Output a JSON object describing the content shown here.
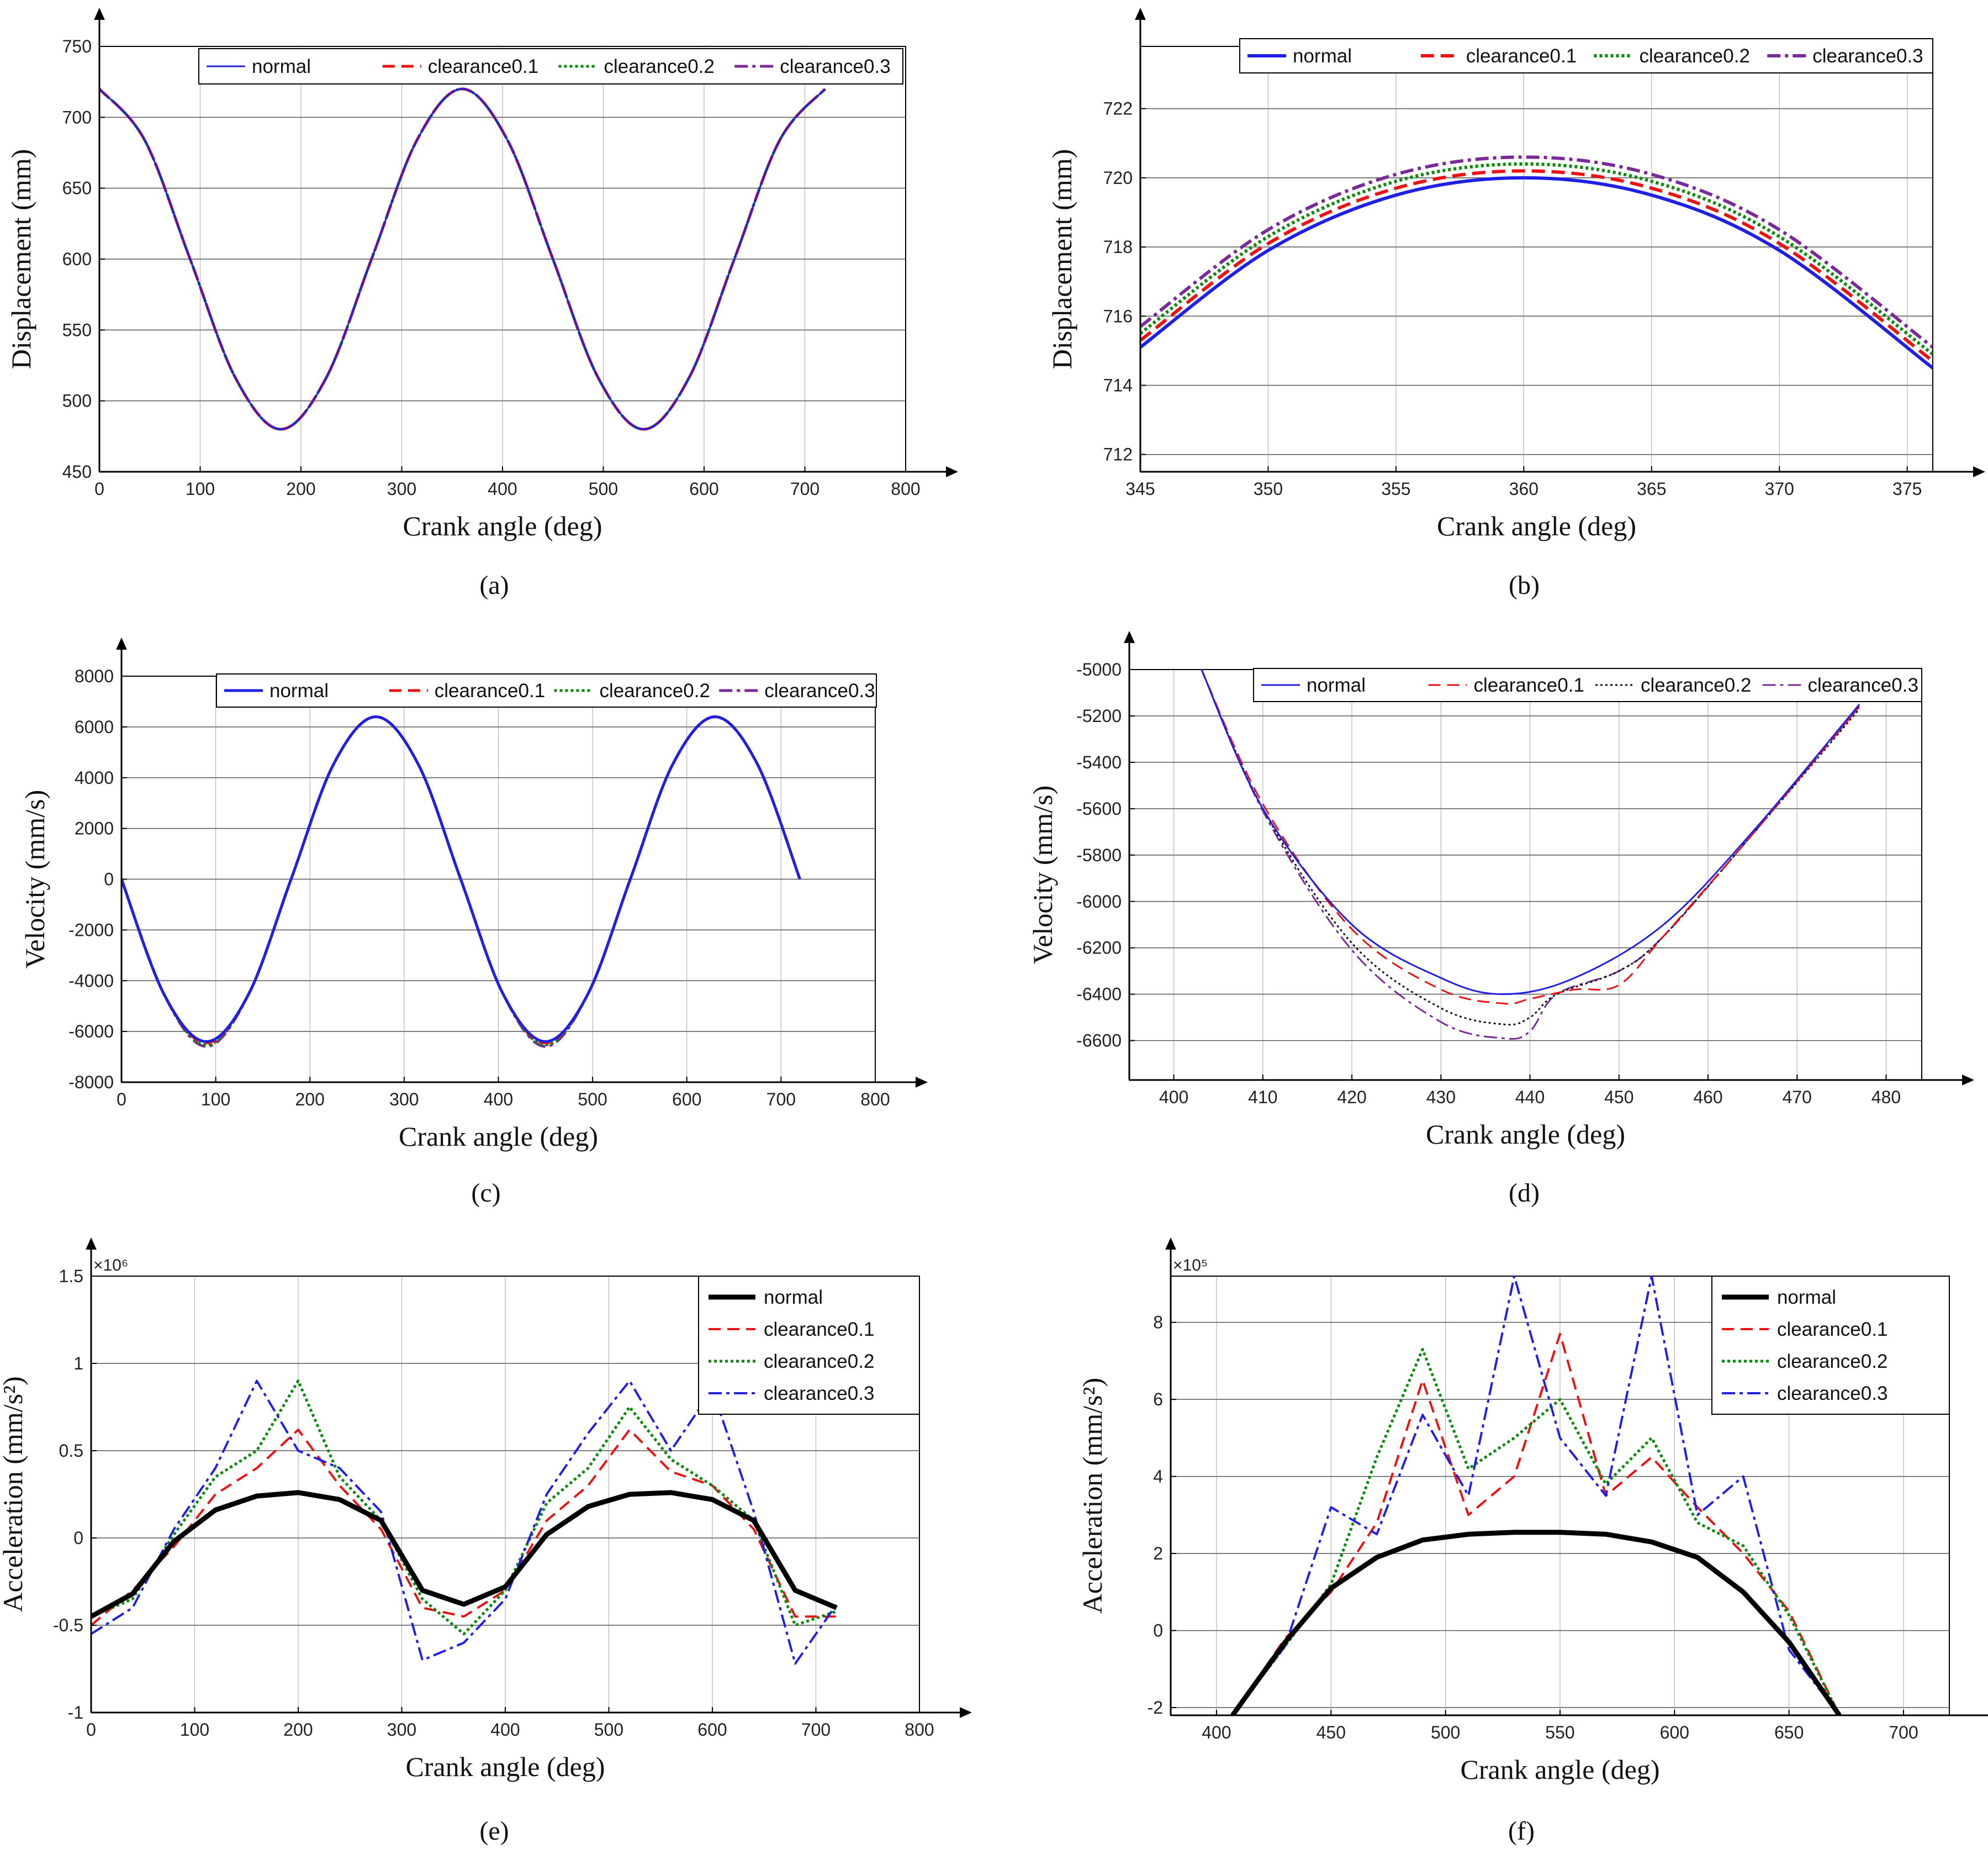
{
  "figure": {
    "colors": {
      "normal": "#1f1fe6",
      "clearance0.1": "#ee1111",
      "clearance0.2": "#0a8a0a",
      "clearance0.3": "#7a2a9a",
      "normal_black": "#000000",
      "clearance0.2_black": "#111111",
      "clearance0.3_blue": "#1f1fe6"
    }
  },
  "chart_data": [
    {
      "id": "a",
      "caption": "(a)",
      "type": "line",
      "xlabel": "Crank angle (deg)",
      "ylabel": "Displacement (mm)",
      "xlim": [
        0,
        800
      ],
      "ylim": [
        450,
        750
      ],
      "xticks": [
        "0",
        "100",
        "200",
        "300",
        "400",
        "500",
        "600",
        "700",
        "800"
      ],
      "yticks": [
        "450",
        "500",
        "550",
        "600",
        "650",
        "700",
        "750"
      ],
      "legend": [
        "normal",
        "clearance0.1",
        "clearance0.2",
        "clearance0.3"
      ],
      "series": [
        {
          "name": "normal",
          "x": [
            0,
            45,
            90,
            135,
            180,
            225,
            270,
            315,
            360,
            405,
            450,
            495,
            540,
            585,
            630,
            675,
            720
          ],
          "values": [
            720,
            683.8,
            600,
            516.2,
            480,
            516.2,
            600,
            683.8,
            720,
            683.8,
            600,
            516.2,
            480,
            516.2,
            600,
            683.8,
            720
          ]
        },
        {
          "name": "clearance0.1",
          "x": [
            0,
            45,
            90,
            135,
            180,
            225,
            270,
            315,
            360,
            405,
            450,
            495,
            540,
            585,
            630,
            675,
            720
          ],
          "values": [
            720,
            683.8,
            600,
            516.2,
            480,
            516.2,
            600,
            683.8,
            720,
            683.8,
            600,
            516.2,
            480,
            516.2,
            600,
            683.8,
            720
          ]
        },
        {
          "name": "clearance0.2",
          "x": [
            0,
            45,
            90,
            135,
            180,
            225,
            270,
            315,
            360,
            405,
            450,
            495,
            540,
            585,
            630,
            675,
            720
          ],
          "values": [
            720,
            683.8,
            600,
            516.2,
            480,
            516.2,
            600,
            683.8,
            720,
            683.8,
            600,
            516.2,
            480,
            516.2,
            600,
            683.8,
            720
          ]
        },
        {
          "name": "clearance0.3",
          "x": [
            0,
            45,
            90,
            135,
            180,
            225,
            270,
            315,
            360,
            405,
            450,
            495,
            540,
            585,
            630,
            675,
            720
          ],
          "values": [
            720,
            683.8,
            600,
            516.2,
            480,
            516.2,
            600,
            683.8,
            720,
            683.8,
            600,
            516.2,
            480,
            516.2,
            600,
            683.8,
            720
          ]
        }
      ]
    },
    {
      "id": "b",
      "caption": "(b)",
      "type": "line",
      "xlabel": "Crank angle (deg)",
      "ylabel": "Displacement (mm)",
      "xlim": [
        345,
        376
      ],
      "ylim": [
        711.5,
        723.8
      ],
      "xticks": [
        "345",
        "350",
        "355",
        "360",
        "365",
        "370",
        "375"
      ],
      "yticks": [
        "712",
        "714",
        "716",
        "718",
        "720",
        "722"
      ],
      "legend": [
        "normal",
        "clearance0.1",
        "clearance0.2",
        "clearance0.3"
      ],
      "series": [
        {
          "name": "normal",
          "x": [
            345,
            350,
            355,
            360,
            365,
            370,
            376
          ],
          "values": [
            715.1,
            717.9,
            719.5,
            720,
            719.5,
            717.9,
            714.5
          ]
        },
        {
          "name": "clearance0.1",
          "x": [
            345,
            350,
            355,
            360,
            365,
            370,
            376
          ],
          "values": [
            715.3,
            718.1,
            719.7,
            720.2,
            719.7,
            718.1,
            714.7
          ]
        },
        {
          "name": "clearance0.2",
          "x": [
            345,
            350,
            355,
            360,
            365,
            370,
            376
          ],
          "values": [
            715.5,
            718.3,
            719.9,
            720.4,
            719.9,
            718.3,
            714.9
          ]
        },
        {
          "name": "clearance0.3",
          "x": [
            345,
            350,
            355,
            360,
            365,
            370,
            376
          ],
          "values": [
            715.7,
            718.5,
            720.1,
            720.6,
            720.1,
            718.5,
            715.1
          ]
        }
      ]
    },
    {
      "id": "c",
      "caption": "(c)",
      "type": "line",
      "xlabel": "Crank angle (deg)",
      "ylabel": "Velocity (mm/s)",
      "xlim": [
        0,
        800
      ],
      "ylim": [
        -8000,
        8000
      ],
      "xticks": [
        "0",
        "100",
        "200",
        "300",
        "400",
        "500",
        "600",
        "700",
        "800"
      ],
      "yticks": [
        "-8000",
        "-6000",
        "-4000",
        "-2000",
        "0",
        "2000",
        "4000",
        "6000",
        "8000"
      ],
      "legend": [
        "normal",
        "clearance0.1",
        "clearance0.2",
        "clearance0.3"
      ],
      "series": [
        {
          "name": "normal",
          "x": [
            0,
            45,
            90,
            135,
            180,
            225,
            270,
            315,
            360,
            405,
            450,
            495,
            540,
            585,
            630,
            675,
            720
          ],
          "values": [
            0,
            -4525,
            -6400,
            -4525,
            0,
            4525,
            6400,
            4525,
            0,
            -4525,
            -6400,
            -4525,
            0,
            4525,
            6400,
            4525,
            0
          ]
        },
        {
          "name": "clearance0.1",
          "x": [
            0,
            45,
            90,
            135,
            180,
            225,
            270,
            315,
            360,
            405,
            450,
            495,
            540,
            585,
            630,
            675,
            720
          ],
          "values": [
            0,
            -4525,
            -6450,
            -4525,
            0,
            4525,
            6400,
            4525,
            0,
            -4525,
            -6450,
            -4525,
            0,
            4525,
            6400,
            4525,
            0
          ]
        },
        {
          "name": "clearance0.2",
          "x": [
            0,
            45,
            90,
            135,
            180,
            225,
            270,
            315,
            360,
            405,
            450,
            495,
            540,
            585,
            630,
            675,
            720
          ],
          "values": [
            0,
            -4525,
            -6530,
            -4525,
            0,
            4525,
            6400,
            4525,
            0,
            -4525,
            -6530,
            -4525,
            0,
            4525,
            6400,
            4525,
            0
          ]
        },
        {
          "name": "clearance0.3",
          "x": [
            0,
            45,
            90,
            135,
            180,
            225,
            270,
            315,
            360,
            405,
            450,
            495,
            540,
            585,
            630,
            675,
            720
          ],
          "values": [
            0,
            -4525,
            -6590,
            -4525,
            0,
            4525,
            6400,
            4525,
            0,
            -4525,
            -6590,
            -4525,
            0,
            4525,
            6400,
            4525,
            0
          ]
        }
      ]
    },
    {
      "id": "d",
      "caption": "(d)",
      "type": "line",
      "xlabel": "Crank angle (deg)",
      "ylabel": "Velocity (mm/s)",
      "xlim": [
        395,
        484
      ],
      "ylim": [
        -6770,
        -5000
      ],
      "xticks": [
        "400",
        "410",
        "420",
        "430",
        "440",
        "450",
        "460",
        "470",
        "480"
      ],
      "yticks": [
        "-6600",
        "-6400",
        "-6200",
        "-6000",
        "-5800",
        "-5600",
        "-5400",
        "-5200",
        "-5000"
      ],
      "legend": [
        "normal",
        "clearance0.1",
        "clearance0.2",
        "clearance0.3"
      ],
      "series": [
        {
          "name": "normal",
          "x": [
            403,
            410,
            420,
            430,
            437,
            445,
            455,
            465,
            477
          ],
          "values": [
            -4990,
            -5600,
            -6100,
            -6330,
            -6400,
            -6330,
            -6100,
            -5700,
            -5150
          ]
        },
        {
          "name": "clearance0.1",
          "x": [
            403,
            410,
            420,
            430,
            437,
            440,
            445,
            450,
            455,
            465,
            477
          ],
          "values": [
            -4990,
            -5580,
            -6120,
            -6380,
            -6440,
            -6420,
            -6380,
            -6360,
            -6150,
            -5710,
            -5160
          ]
        },
        {
          "name": "clearance0.2",
          "x": [
            403,
            410,
            420,
            430,
            437,
            440,
            443,
            450,
            455,
            465,
            477
          ],
          "values": [
            -4990,
            -5600,
            -6180,
            -6460,
            -6530,
            -6500,
            -6400,
            -6300,
            -6150,
            -5710,
            -5170
          ]
        },
        {
          "name": "clearance0.3",
          "x": [
            403,
            410,
            420,
            430,
            437,
            440,
            443,
            450,
            455,
            465,
            477
          ],
          "values": [
            -4990,
            -5610,
            -6210,
            -6520,
            -6590,
            -6560,
            -6400,
            -6300,
            -6150,
            -5710,
            -5160
          ]
        }
      ]
    },
    {
      "id": "e",
      "caption": "(e)",
      "type": "line",
      "xlabel": "Crank angle (deg)",
      "ylabel": "Acceleration (mm/s²)",
      "exponent": "×10⁶",
      "xlim": [
        0,
        800
      ],
      "ylim": [
        -1,
        1.5
      ],
      "xticks": [
        "0",
        "100",
        "200",
        "300",
        "400",
        "500",
        "600",
        "700",
        "800"
      ],
      "yticks": [
        "-1",
        "-0.5",
        "0",
        "0.5",
        "1",
        "1.5"
      ],
      "legend": [
        "normal",
        "clearance0.1",
        "clearance0.2",
        "clearance0.3"
      ],
      "series": [
        {
          "name": "normal",
          "x": [
            0,
            40,
            80,
            120,
            160,
            200,
            240,
            280,
            320,
            360,
            400,
            440,
            480,
            520,
            560,
            600,
            640,
            680,
            720
          ],
          "values": [
            -0.45,
            -0.32,
            -0.02,
            0.16,
            0.24,
            0.26,
            0.22,
            0.1,
            -0.3,
            -0.38,
            -0.28,
            0.02,
            0.18,
            0.25,
            0.26,
            0.22,
            0.1,
            -0.3,
            -0.4
          ]
        },
        {
          "name": "clearance0.1",
          "x": [
            0,
            40,
            80,
            120,
            160,
            200,
            240,
            280,
            320,
            360,
            400,
            440,
            480,
            520,
            560,
            600,
            640,
            680,
            720
          ],
          "values": [
            -0.5,
            -0.3,
            -0.05,
            0.25,
            0.4,
            0.62,
            0.3,
            0.05,
            -0.4,
            -0.45,
            -0.3,
            0.1,
            0.3,
            0.62,
            0.38,
            0.3,
            0.05,
            -0.45,
            -0.45
          ]
        },
        {
          "name": "clearance0.2",
          "x": [
            0,
            40,
            80,
            120,
            160,
            200,
            240,
            280,
            320,
            360,
            400,
            440,
            480,
            520,
            560,
            600,
            640,
            680,
            720
          ],
          "values": [
            -0.45,
            -0.35,
            0.02,
            0.35,
            0.5,
            0.9,
            0.35,
            0.1,
            -0.35,
            -0.55,
            -0.3,
            0.2,
            0.4,
            0.75,
            0.45,
            0.3,
            0.1,
            -0.5,
            -0.42
          ]
        },
        {
          "name": "clearance0.3",
          "x": [
            0,
            40,
            80,
            120,
            160,
            200,
            240,
            280,
            320,
            360,
            400,
            440,
            480,
            520,
            560,
            600,
            640,
            680,
            720
          ],
          "values": [
            -0.55,
            -0.4,
            0.05,
            0.4,
            0.9,
            0.5,
            0.4,
            0.15,
            -0.7,
            -0.6,
            -0.35,
            0.25,
            0.6,
            0.9,
            0.5,
            0.85,
            0.15,
            -0.72,
            -0.38
          ]
        }
      ]
    },
    {
      "id": "f",
      "caption": "(f)",
      "type": "line",
      "xlabel": "Crank angle (deg)",
      "ylabel": "Acceleration (mm/s²)",
      "exponent": "×10⁵",
      "xlim": [
        380,
        720
      ],
      "ylim": [
        -2.2,
        9.2
      ],
      "xticks": [
        "400",
        "450",
        "500",
        "550",
        "600",
        "650",
        "700"
      ],
      "yticks": [
        "-2",
        "0",
        "2",
        "4",
        "6",
        "8"
      ],
      "legend": [
        "normal",
        "clearance0.1",
        "clearance0.2",
        "clearance0.3"
      ],
      "series": [
        {
          "name": "normal",
          "x": [
            407,
            430,
            450,
            470,
            490,
            510,
            530,
            550,
            570,
            590,
            610,
            630,
            650,
            672
          ],
          "values": [
            -2.2,
            -0.3,
            1.1,
            1.9,
            2.35,
            2.5,
            2.55,
            2.55,
            2.5,
            2.3,
            1.9,
            1.0,
            -0.3,
            -2.2
          ]
        },
        {
          "name": "clearance0.1",
          "x": [
            407,
            430,
            450,
            470,
            490,
            510,
            530,
            550,
            570,
            590,
            610,
            630,
            650,
            672
          ],
          "values": [
            -2.2,
            -0.2,
            1.0,
            2.8,
            6.5,
            3.0,
            4.0,
            7.7,
            3.5,
            4.5,
            3.2,
            2.0,
            0.5,
            -2.2
          ]
        },
        {
          "name": "clearance0.2",
          "x": [
            407,
            430,
            450,
            470,
            490,
            510,
            530,
            550,
            570,
            590,
            610,
            630,
            650,
            672
          ],
          "values": [
            -2.2,
            -0.4,
            1.2,
            4.5,
            7.3,
            4.2,
            5.0,
            6.0,
            3.8,
            5.0,
            2.8,
            2.2,
            0.4,
            -2.2
          ]
        },
        {
          "name": "clearance0.3",
          "x": [
            407,
            430,
            450,
            470,
            490,
            510,
            530,
            550,
            570,
            590,
            610,
            630,
            650,
            672
          ],
          "values": [
            -2.2,
            -0.4,
            3.2,
            2.5,
            5.6,
            3.5,
            9.2,
            5.0,
            3.5,
            9.2,
            3.0,
            4.0,
            -0.5,
            -2.2
          ]
        }
      ]
    }
  ]
}
